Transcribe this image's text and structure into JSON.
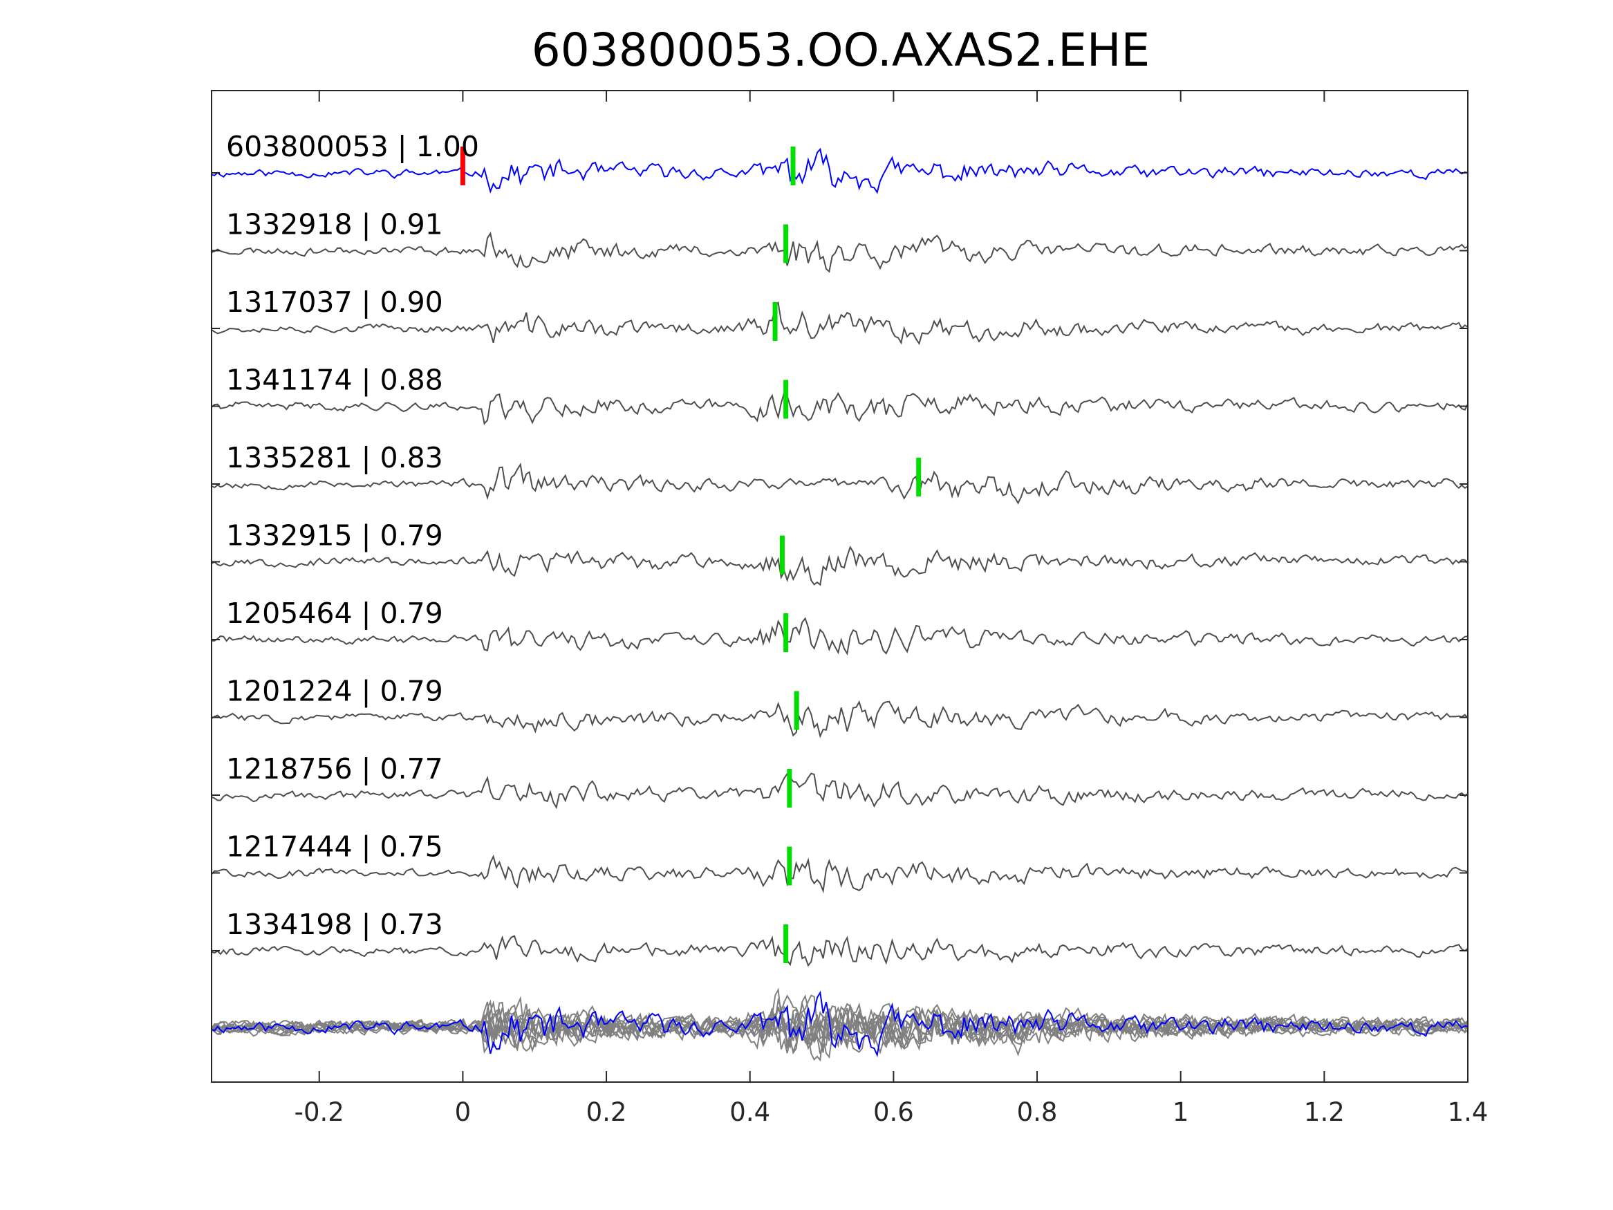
{
  "chart_data": {
    "type": "line",
    "title": "603800053.OO.AXAS2.EHE",
    "xlabel": "",
    "ylabel": "",
    "xlim": [
      -0.35,
      1.4
    ],
    "x_ticks": [
      -0.2,
      0,
      0.2,
      0.4,
      0.6,
      0.8,
      1,
      1.2,
      1.4
    ],
    "x_tick_labels": [
      "-0.2",
      "0",
      "0.2",
      "0.4",
      "0.6",
      "0.8",
      "1",
      "1.2",
      "1.4"
    ],
    "grid": false,
    "legend": "none",
    "colors": {
      "template": "#0000ff",
      "match": "#4d4d4d",
      "stack": "#808080",
      "p_pick": "#ff0000",
      "s_pick": "#00dd00",
      "axes": "#262626"
    },
    "traces": [
      {
        "label": "603800053 | 1.00",
        "id": "603800053",
        "cc": 1.0,
        "color": "template",
        "seed": 11,
        "s_pick": 0.46,
        "p_pick": 0.0
      },
      {
        "label": "1332918 | 0.91",
        "id": "1332918",
        "cc": 0.91,
        "color": "match",
        "seed": 23,
        "s_pick": 0.45
      },
      {
        "label": "1317037 | 0.90",
        "id": "1317037",
        "cc": 0.9,
        "color": "match",
        "seed": 37,
        "s_pick": 0.435
      },
      {
        "label": "1341174 | 0.88",
        "id": "1341174",
        "cc": 0.88,
        "color": "match",
        "seed": 41,
        "s_pick": 0.45
      },
      {
        "label": "1335281 | 0.83",
        "id": "1335281",
        "cc": 0.83,
        "color": "match",
        "seed": 53,
        "s_pick": 0.635
      },
      {
        "label": "1332915 | 0.79",
        "id": "1332915",
        "cc": 0.79,
        "color": "match",
        "seed": 67,
        "s_pick": 0.445
      },
      {
        "label": "1205464 | 0.79",
        "id": "1205464",
        "cc": 0.79,
        "color": "match",
        "seed": 71,
        "s_pick": 0.45
      },
      {
        "label": "1201224 | 0.79",
        "id": "1201224",
        "cc": 0.79,
        "color": "match",
        "seed": 83,
        "s_pick": 0.465
      },
      {
        "label": "1218756 | 0.77",
        "id": "1218756",
        "cc": 0.77,
        "color": "match",
        "seed": 97,
        "s_pick": 0.455
      },
      {
        "label": "1217444 | 0.75",
        "id": "1217444",
        "cc": 0.75,
        "color": "match",
        "seed": 101,
        "s_pick": 0.455
      },
      {
        "label": "1334198 | 0.73",
        "id": "1334198",
        "cc": 0.73,
        "color": "match",
        "seed": 113,
        "s_pick": 0.45
      }
    ],
    "stack": {
      "count": 11,
      "includes_template": true
    }
  }
}
